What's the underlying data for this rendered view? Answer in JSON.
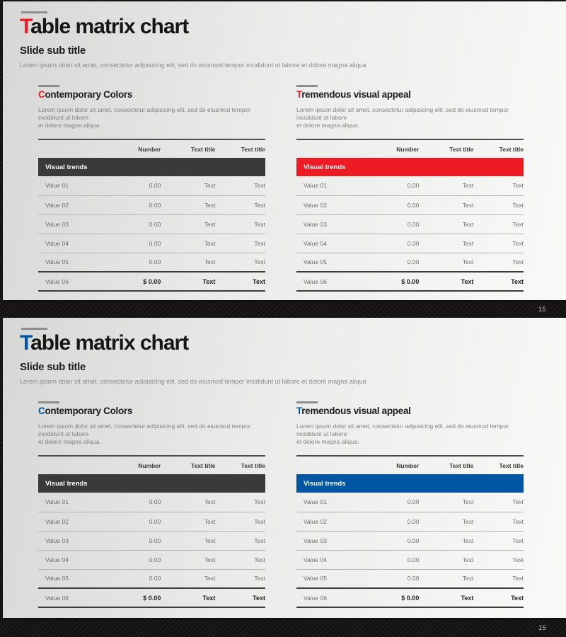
{
  "colors": {
    "red": "#ed1c24",
    "blue": "#0056a3",
    "dark_band": "#3a3a38"
  },
  "table": {
    "columns": [
      "Number",
      "Text title",
      "Text title"
    ],
    "rows": [
      {
        "cells": [
          "Value 01",
          "0.00",
          "Text",
          "Text"
        ]
      },
      {
        "cells": [
          "Value 02",
          "0.00",
          "Text",
          "Text"
        ]
      },
      {
        "cells": [
          "Value 03",
          "0.00",
          "Text",
          "Text"
        ]
      },
      {
        "cells": [
          "Value 04",
          "0.00",
          "Text",
          "Text"
        ]
      },
      {
        "cells": [
          "Value 05",
          "0.00",
          "Text",
          "Text"
        ]
      },
      {
        "cells": [
          "Value 06",
          "$ 0.00",
          "Text",
          "Text"
        ],
        "total": true
      }
    ]
  },
  "slides": [
    {
      "accent": "#ed1c24",
      "title_accent": "T",
      "title_rest": "able matrix chart",
      "subtitle": "Slide sub title",
      "lead": "Lorem ipsum dolor sit amet, consectetur adipisicing elit, sed do eiusmod tempor incididunt ut labore et dolore magna aliqua",
      "page_number": "15",
      "sections": [
        {
          "accent": "#ed1c24",
          "heading_accent": "C",
          "heading_rest": "ontemporary Colors",
          "body": "Lorem ipsum dolor sit amet, consectetur adipisicing elit, sed do eiusmod tempor incididunt ut labore\net dolore magna aliqua.",
          "band_label": "Visual trends",
          "band_color": "#3a3a38"
        },
        {
          "accent": "#ed1c24",
          "heading_accent": "T",
          "heading_rest": "remendous visual appeal",
          "body": "Lorem ipsum dolor sit amet, consectetur adipisicing elit, sed do eiusmod tempor incididunt ut labore\net dolore magna aliqua.",
          "band_label": "Visual trends",
          "band_color": "#ed1c24"
        }
      ]
    },
    {
      "accent": "#0056a3",
      "title_accent": "T",
      "title_rest": "able matrix chart",
      "subtitle": "Slide sub title",
      "lead": "Lorem ipsum dolor sit amet, consectetur adipisicing elit, sed do eiusmod tempor incididunt ut labore et dolore magna aliqua",
      "page_number": "15",
      "sections": [
        {
          "accent": "#0056a3",
          "heading_accent": "C",
          "heading_rest": "ontemporary Colors",
          "body": "Lorem ipsum dolor sit amet, consectetur adipisicing elit, sed do eiusmod tempor incididunt ut labore\net dolore magna aliqua.",
          "band_label": "Visual trends",
          "band_color": "#3a3a38"
        },
        {
          "accent": "#0056a3",
          "heading_accent": "T",
          "heading_rest": "remendous visual appeal",
          "body": "Lorem ipsum dolor sit amet, consectetur adipisicing elit, sed do eiusmod tempor incididunt ut labore\net dolore magna aliqua.",
          "band_label": "Visual trends",
          "band_color": "#0056a3"
        }
      ]
    }
  ]
}
